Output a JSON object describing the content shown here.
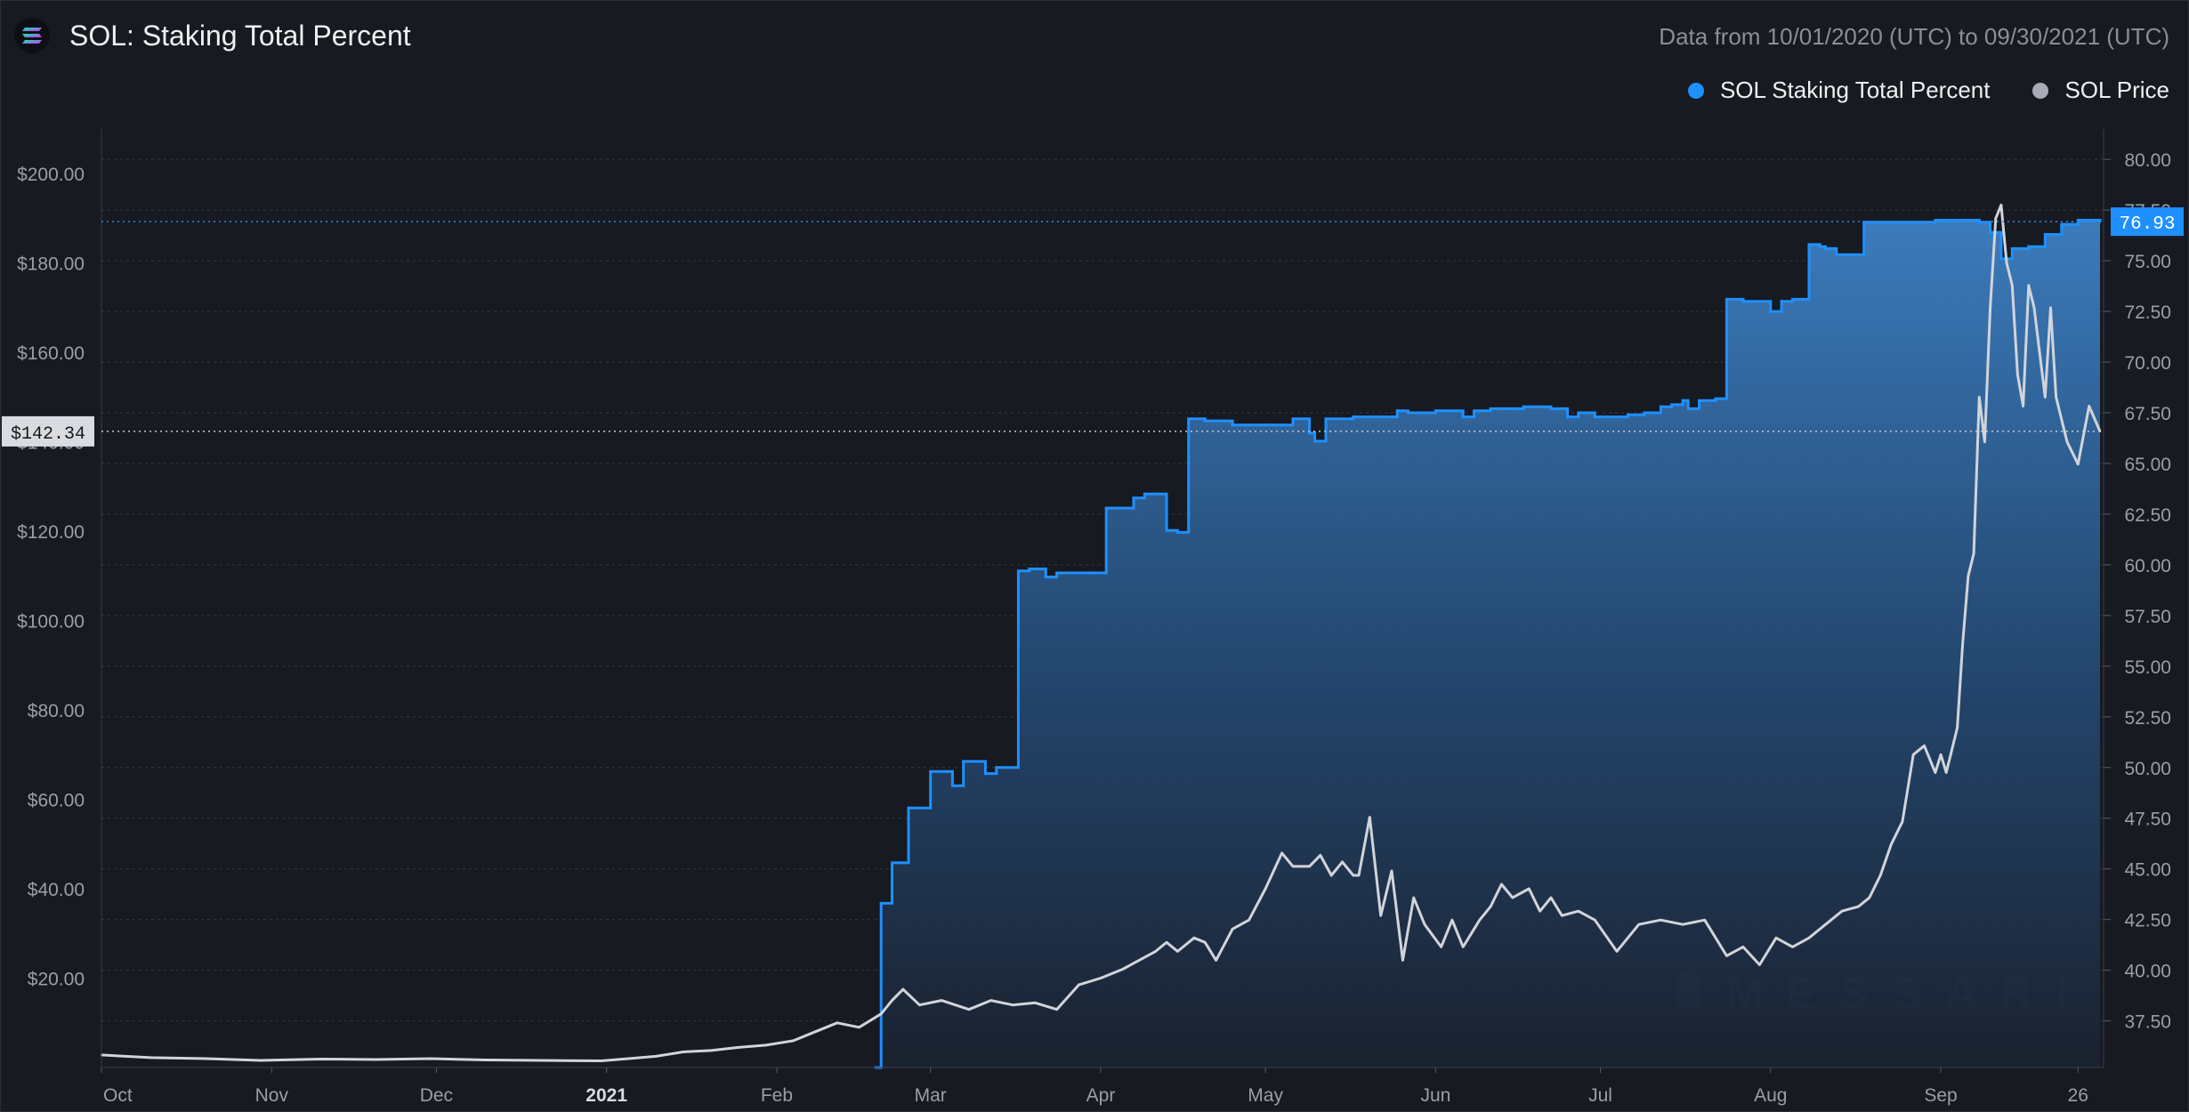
{
  "header": {
    "title": "SOL: Staking Total Percent",
    "date_range": "Data from 10/01/2020 (UTC) to 09/30/2021 (UTC)"
  },
  "legend": {
    "items": [
      {
        "label": "SOL Staking Total Percent",
        "color": "#1e90ff"
      },
      {
        "label": "SOL Price",
        "color": "#a9acb6"
      }
    ]
  },
  "watermark": "MESSARI",
  "colors": {
    "background": "#171a21",
    "staking_line": "#1e90ff",
    "price_line": "#d2d4da",
    "grid": "#3a3f4b"
  },
  "chart_data": {
    "type": "area",
    "xlabel": "",
    "x_ticks": [
      "Oct",
      "Nov",
      "Dec",
      "2021",
      "Feb",
      "Mar",
      "Apr",
      "May",
      "Jun",
      "Jul",
      "Aug",
      "Sep",
      "26"
    ],
    "y_left": {
      "ticks": [
        "$20.00",
        "$40.00",
        "$60.00",
        "$80.00",
        "$100.00",
        "$120.00",
        "$140.00",
        "$160.00",
        "$180.00",
        "$200.00"
      ],
      "range": [
        0,
        210
      ],
      "current_label": "$142.34",
      "current_value": 142.34
    },
    "y_right": {
      "ticks": [
        "37.50",
        "40.00",
        "42.50",
        "45.00",
        "47.50",
        "50.00",
        "52.50",
        "55.00",
        "57.50",
        "60.00",
        "62.50",
        "65.00",
        "67.50",
        "70.00",
        "72.50",
        "75.00",
        "77.50",
        "80.00"
      ],
      "range": [
        35.2,
        81.5
      ],
      "current_label": "76.93",
      "current_value": 76.93
    },
    "series": [
      {
        "name": "SOL Staking Total Percent",
        "axis": "right",
        "x": [
          "2021-02-19",
          "2021-02-20",
          "2021-02-21",
          "2021-02-22",
          "2021-02-23",
          "2021-02-25",
          "2021-02-27",
          "2021-03-01",
          "2021-03-03",
          "2021-03-05",
          "2021-03-07",
          "2021-03-09",
          "2021-03-11",
          "2021-03-13",
          "2021-03-15",
          "2021-03-17",
          "2021-03-19",
          "2021-03-22",
          "2021-03-24",
          "2021-03-26",
          "2021-04-01",
          "2021-04-02",
          "2021-04-04",
          "2021-04-07",
          "2021-04-09",
          "2021-04-11",
          "2021-04-13",
          "2021-04-15",
          "2021-04-17",
          "2021-04-20",
          "2021-04-22",
          "2021-04-25",
          "2021-05-01",
          "2021-05-06",
          "2021-05-09",
          "2021-05-10",
          "2021-05-12",
          "2021-05-17",
          "2021-05-22",
          "2021-05-25",
          "2021-05-27",
          "2021-06-01",
          "2021-06-06",
          "2021-06-08",
          "2021-06-11",
          "2021-06-17",
          "2021-06-22",
          "2021-06-25",
          "2021-06-27",
          "2021-06-30",
          "2021-07-06",
          "2021-07-09",
          "2021-07-12",
          "2021-07-14",
          "2021-07-16",
          "2021-07-17",
          "2021-07-19",
          "2021-07-22",
          "2021-07-24",
          "2021-07-27",
          "2021-08-01",
          "2021-08-03",
          "2021-08-05",
          "2021-08-08",
          "2021-08-10",
          "2021-08-11",
          "2021-08-13",
          "2021-08-15",
          "2021-08-18",
          "2021-08-24",
          "2021-08-31",
          "2021-09-05",
          "2021-09-08",
          "2021-09-10",
          "2021-09-12",
          "2021-09-14",
          "2021-09-17",
          "2021-09-20",
          "2021-09-23",
          "2021-09-26",
          "2021-09-28",
          "2021-09-30"
        ],
        "values": [
          35.2,
          43.3,
          43.3,
          45.3,
          45.3,
          48.0,
          48.0,
          49.8,
          49.8,
          49.1,
          50.3,
          50.3,
          49.7,
          50.0,
          50.0,
          59.7,
          59.8,
          59.4,
          59.6,
          59.6,
          59.6,
          62.8,
          62.8,
          63.3,
          63.5,
          63.5,
          61.7,
          61.6,
          67.2,
          67.1,
          67.1,
          66.9,
          66.9,
          67.2,
          66.5,
          66.1,
          67.2,
          67.3,
          67.3,
          67.6,
          67.5,
          67.6,
          67.3,
          67.6,
          67.7,
          67.8,
          67.7,
          67.3,
          67.5,
          67.3,
          67.4,
          67.5,
          67.8,
          67.9,
          68.1,
          67.7,
          68.1,
          68.2,
          73.1,
          73.0,
          72.5,
          73.0,
          73.1,
          75.8,
          75.7,
          75.6,
          75.3,
          75.3,
          76.9,
          76.9,
          77.0,
          77.0,
          76.9,
          76.4,
          75.1,
          75.6,
          75.7,
          76.3,
          76.8,
          77.0,
          77.0,
          76.93
        ]
      },
      {
        "name": "SOL Price",
        "axis": "left",
        "x": [
          "2020-10-01",
          "2020-10-10",
          "2020-10-20",
          "2020-10-30",
          "2020-11-10",
          "2020-11-20",
          "2020-11-30",
          "2020-12-10",
          "2020-12-20",
          "2020-12-31",
          "2021-01-05",
          "2021-01-10",
          "2021-01-15",
          "2021-01-20",
          "2021-01-25",
          "2021-01-30",
          "2021-02-04",
          "2021-02-08",
          "2021-02-12",
          "2021-02-16",
          "2021-02-20",
          "2021-02-22",
          "2021-02-24",
          "2021-02-27",
          "2021-03-03",
          "2021-03-08",
          "2021-03-12",
          "2021-03-16",
          "2021-03-20",
          "2021-03-24",
          "2021-03-28",
          "2021-04-01",
          "2021-04-05",
          "2021-04-08",
          "2021-04-11",
          "2021-04-13",
          "2021-04-15",
          "2021-04-18",
          "2021-04-20",
          "2021-04-22",
          "2021-04-25",
          "2021-04-28",
          "2021-05-01",
          "2021-05-04",
          "2021-05-06",
          "2021-05-09",
          "2021-05-11",
          "2021-05-13",
          "2021-05-15",
          "2021-05-17",
          "2021-05-18",
          "2021-05-20",
          "2021-05-22",
          "2021-05-24",
          "2021-05-26",
          "2021-05-28",
          "2021-05-30",
          "2021-06-02",
          "2021-06-04",
          "2021-06-06",
          "2021-06-09",
          "2021-06-11",
          "2021-06-13",
          "2021-06-15",
          "2021-06-18",
          "2021-06-20",
          "2021-06-22",
          "2021-06-24",
          "2021-06-27",
          "2021-06-30",
          "2021-07-04",
          "2021-07-08",
          "2021-07-12",
          "2021-07-16",
          "2021-07-20",
          "2021-07-22",
          "2021-07-24",
          "2021-07-27",
          "2021-07-30",
          "2021-08-02",
          "2021-08-05",
          "2021-08-08",
          "2021-08-11",
          "2021-08-14",
          "2021-08-17",
          "2021-08-19",
          "2021-08-21",
          "2021-08-23",
          "2021-08-25",
          "2021-08-27",
          "2021-08-29",
          "2021-08-31",
          "2021-09-01",
          "2021-09-02",
          "2021-09-04",
          "2021-09-05",
          "2021-09-06",
          "2021-09-07",
          "2021-09-08",
          "2021-09-09",
          "2021-09-10",
          "2021-09-11",
          "2021-09-12",
          "2021-09-13",
          "2021-09-14",
          "2021-09-15",
          "2021-09-16",
          "2021-09-17",
          "2021-09-18",
          "2021-09-19",
          "2021-09-20",
          "2021-09-21",
          "2021-09-22",
          "2021-09-24",
          "2021-09-26",
          "2021-09-28",
          "2021-09-30"
        ],
        "values": [
          2.8,
          2.2,
          2.0,
          1.6,
          1.9,
          1.8,
          2.0,
          1.7,
          1.6,
          1.5,
          2.0,
          2.5,
          3.5,
          3.8,
          4.5,
          5.0,
          6.0,
          8.0,
          10.0,
          9.0,
          12.0,
          15.0,
          17.5,
          14.0,
          15.0,
          13.0,
          15.0,
          14.0,
          14.5,
          13.0,
          18.5,
          20.0,
          22.0,
          24.0,
          26.0,
          28.0,
          26.0,
          29.0,
          28.0,
          24.0,
          31.0,
          33.0,
          40.0,
          48.0,
          45.0,
          45.0,
          47.5,
          43.0,
          46.0,
          43.0,
          43.0,
          56.0,
          34.0,
          44.0,
          24.0,
          38.0,
          32.0,
          27.0,
          33.0,
          27.0,
          33.0,
          36.0,
          41.0,
          38.0,
          40.0,
          35.0,
          38.0,
          34.0,
          35.0,
          33.0,
          26.0,
          32.0,
          33.0,
          32.0,
          33.0,
          29.0,
          25.0,
          27.0,
          23.0,
          29.0,
          27.0,
          29.0,
          32.0,
          35.0,
          36.0,
          38.0,
          43.0,
          50.0,
          55.0,
          70.0,
          72.0,
          66.0,
          70.0,
          66.0,
          76.0,
          95.0,
          110.0,
          115.0,
          150.0,
          140.0,
          170.0,
          190.0,
          193.0,
          180.0,
          175.0,
          155.0,
          148.0,
          175.0,
          170.0,
          160.0,
          150.0,
          170.0,
          150.0,
          140.0,
          135.0,
          148.0,
          142.34
        ]
      }
    ]
  }
}
